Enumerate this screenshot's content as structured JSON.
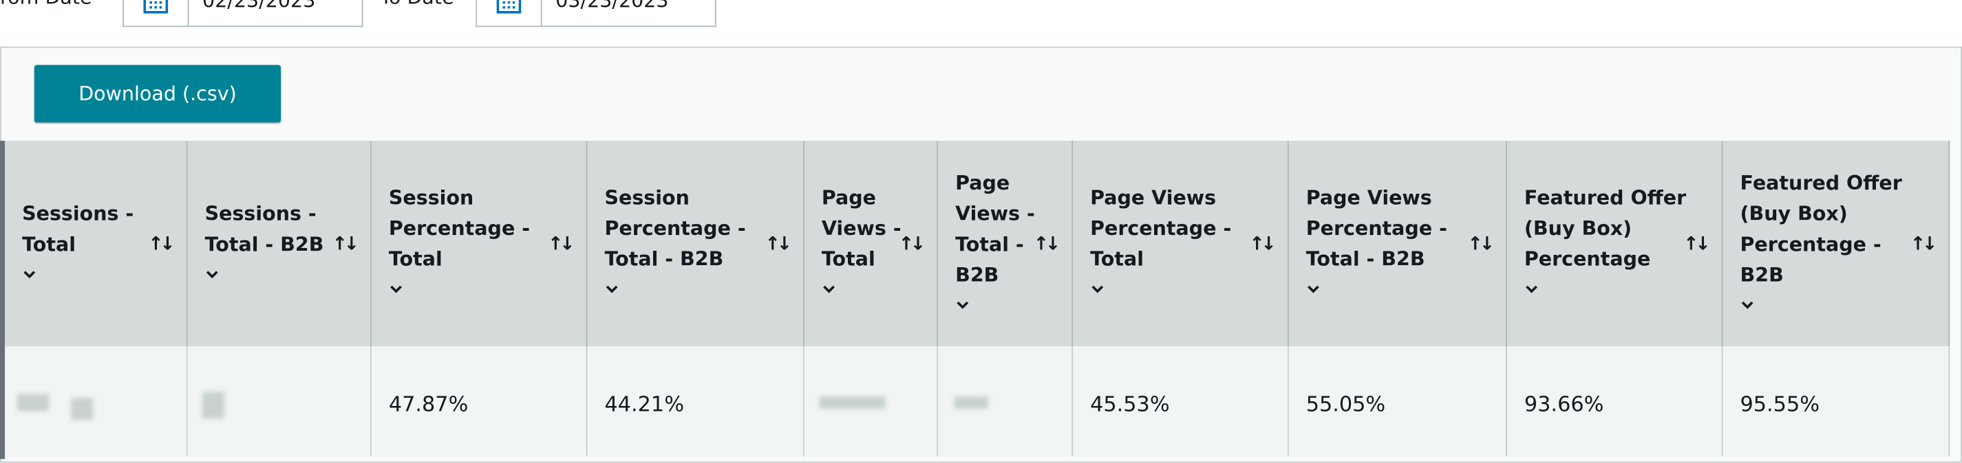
{
  "filters": {
    "from_label": "From Date",
    "from_value": "02/23/2023",
    "to_label": "To Date",
    "to_value": "03/23/2023"
  },
  "toolbar": {
    "download": "Download (.csv)"
  },
  "table": {
    "columns": [
      {
        "label_lines": [
          "Sessions -",
          "Total"
        ]
      },
      {
        "label_lines": [
          "Sessions -",
          "Total - B2B"
        ]
      },
      {
        "label_lines": [
          "Session",
          "Percentage -",
          "Total"
        ]
      },
      {
        "label_lines": [
          "Session",
          "Percentage -",
          "Total - B2B"
        ]
      },
      {
        "label_lines": [
          "Page",
          "Views -",
          "Total"
        ]
      },
      {
        "label_lines": [
          "Page",
          "Views -",
          "Total -",
          "B2B"
        ]
      },
      {
        "label_lines": [
          "Page Views",
          "Percentage -",
          "Total"
        ]
      },
      {
        "label_lines": [
          "Page Views",
          "Percentage -",
          "Total - B2B"
        ]
      },
      {
        "label_lines": [
          "Featured Offer",
          "(Buy Box)",
          "Percentage"
        ]
      },
      {
        "label_lines": [
          "Featured Offer",
          "(Buy Box)",
          "Percentage -",
          "B2B"
        ]
      }
    ],
    "rows": [
      [
        null,
        null,
        "47.87%",
        "44.21%",
        null,
        null,
        "45.53%",
        "55.05%",
        "93.66%",
        "95.55%"
      ]
    ]
  }
}
